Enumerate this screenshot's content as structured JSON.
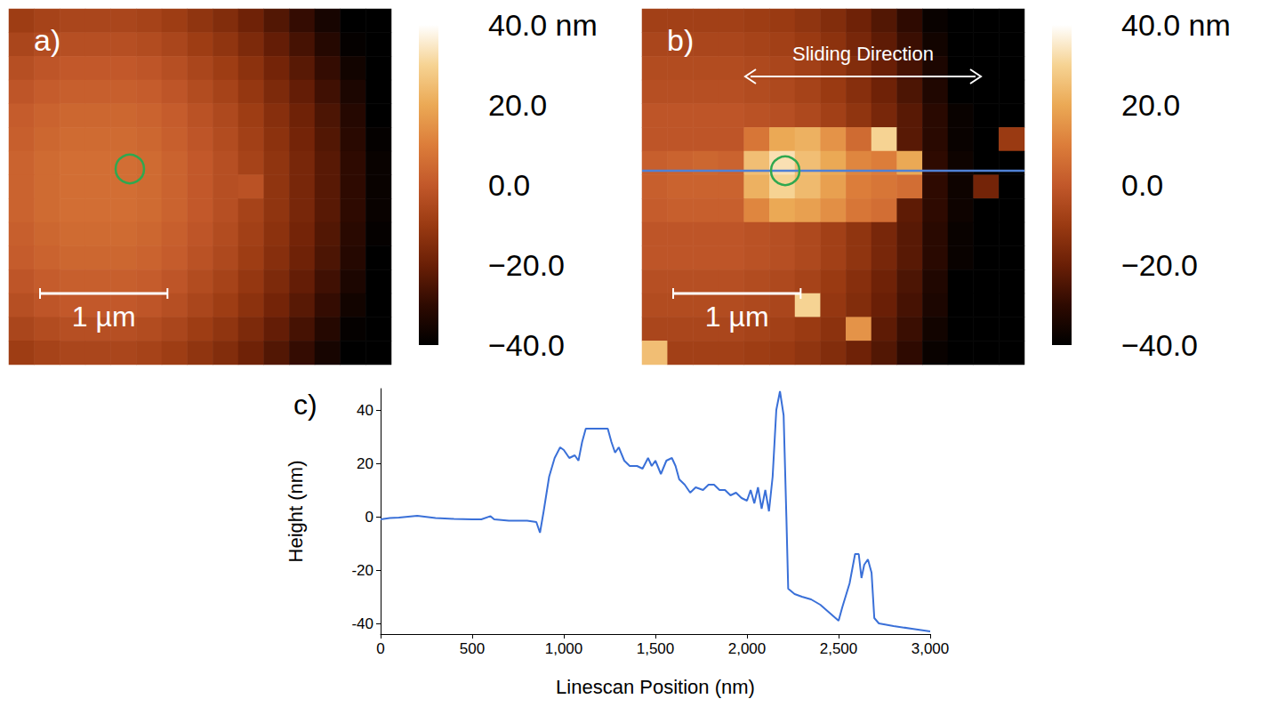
{
  "chart_data": [
    {
      "type": "heatmap",
      "title": "a)",
      "tick_labels": false,
      "x": [
        0.1,
        0.3,
        0.5,
        0.7,
        0.9,
        1.1,
        1.3,
        1.5,
        1.7,
        1.9,
        2.1,
        2.3,
        2.5,
        2.7,
        2.9
      ],
      "y": [
        0.1,
        0.3,
        0.5,
        0.7,
        0.9,
        1.1,
        1.3,
        1.5,
        1.7,
        1.9,
        2.1,
        2.3,
        2.5,
        2.7,
        2.9
      ],
      "values": [
        [
          -9,
          -7,
          -6,
          -6,
          -6,
          -7,
          -9,
          -12,
          -15,
          -19,
          -24,
          -29,
          -35,
          -40,
          -40
        ],
        [
          -6,
          -4,
          -3,
          -3,
          -3,
          -4,
          -6,
          -9,
          -12,
          -16,
          -21,
          -26,
          -32,
          -39,
          -40
        ],
        [
          -3,
          -1,
          0,
          0,
          0,
          -1,
          -3,
          -6,
          -9,
          -13,
          -18,
          -23,
          -29,
          -36,
          -40
        ],
        [
          -1,
          1,
          2,
          2,
          2,
          1,
          -1,
          -4,
          -7,
          -11,
          -16,
          -21,
          -27,
          -34,
          -40
        ],
        [
          1,
          3,
          4,
          4,
          4,
          3,
          1,
          -2,
          -5,
          -9,
          -14,
          -19,
          -25,
          -32,
          -40
        ],
        [
          2,
          4,
          5,
          5,
          5,
          4,
          2,
          -1,
          -4,
          -8,
          -13,
          -18,
          -24,
          -31,
          -39
        ],
        [
          3,
          5,
          6,
          6,
          6,
          5,
          3,
          0,
          -3,
          -7,
          -12,
          -17,
          -23,
          -30,
          -38
        ],
        [
          3,
          5,
          6,
          6,
          6,
          5,
          3,
          0,
          -3,
          -2,
          -12,
          -17,
          -23,
          -30,
          -38
        ],
        [
          3,
          5,
          6,
          6,
          6,
          5,
          3,
          0,
          -3,
          -7,
          -12,
          -17,
          -23,
          -30,
          -38
        ],
        [
          2,
          4,
          5,
          5,
          5,
          4,
          2,
          -1,
          -4,
          -8,
          -13,
          -18,
          -24,
          -31,
          -39
        ],
        [
          1,
          3,
          4,
          4,
          4,
          3,
          1,
          -2,
          -5,
          -9,
          -14,
          -19,
          -25,
          -32,
          -40
        ],
        [
          -1,
          1,
          2,
          2,
          2,
          1,
          -1,
          -4,
          -7,
          -11,
          -16,
          -21,
          -27,
          -34,
          -40
        ],
        [
          -3,
          -1,
          0,
          0,
          0,
          -1,
          -3,
          -6,
          -9,
          -13,
          -18,
          -23,
          -29,
          -36,
          -40
        ],
        [
          -6,
          -4,
          -3,
          -3,
          -3,
          -4,
          -6,
          -9,
          -12,
          -16,
          -21,
          -26,
          -32,
          -39,
          -40
        ],
        [
          -9,
          -7,
          -6,
          -6,
          -6,
          -7,
          -9,
          -12,
          -15,
          -19,
          -24,
          -29,
          -35,
          -40,
          -40
        ]
      ],
      "scale_bar": {
        "value": 1,
        "label": "1 µm"
      },
      "colorbar": {
        "range": [
          -40,
          40
        ],
        "ticks": [
          {
            "value": 40,
            "label": "40.0 nm"
          },
          {
            "value": 20,
            "label": "20.0"
          },
          {
            "value": 0,
            "label": "0.0"
          },
          {
            "value": -20,
            "label": "−20.0"
          },
          {
            "value": -40,
            "label": "−40.0"
          }
        ]
      }
    },
    {
      "type": "heatmap",
      "title": "b)",
      "tick_labels": false,
      "x": [
        0.1,
        0.3,
        0.5,
        0.7,
        0.9,
        1.1,
        1.3,
        1.5,
        1.7,
        1.9,
        2.1,
        2.3,
        2.5,
        2.7,
        2.9
      ],
      "y": [
        0.1,
        0.3,
        0.5,
        0.7,
        0.9,
        1.1,
        1.3,
        1.5,
        1.7,
        1.9,
        2.1,
        2.3,
        2.5,
        2.7,
        2.9
      ],
      "values": [
        [
          -8,
          -8,
          -8,
          -8,
          -9,
          -10,
          -12,
          -15,
          -19,
          -24,
          -30,
          -38,
          -40,
          -40,
          -40
        ],
        [
          -6,
          -6,
          -6,
          -6,
          -7,
          -8,
          -10,
          -13,
          -17,
          -22,
          -28,
          -36,
          -40,
          -40,
          -40
        ],
        [
          -4,
          -4,
          -4,
          -4,
          -5,
          -6,
          -8,
          -11,
          -15,
          -20,
          -26,
          -34,
          -40,
          -40,
          -40
        ],
        [
          -3,
          -3,
          -3,
          -3,
          -4,
          -5,
          -7,
          -10,
          -14,
          -19,
          -25,
          -33,
          -40,
          -40,
          -40
        ],
        [
          -1,
          -1,
          -1,
          -1,
          -2,
          -3,
          -5,
          -8,
          -12,
          -17,
          -23,
          -31,
          -38,
          -40,
          -40
        ],
        [
          -1,
          -1,
          -1,
          -1,
          8,
          20,
          22,
          15,
          5,
          30,
          -23,
          -31,
          -38,
          -40,
          -10
        ],
        [
          2,
          3,
          4,
          3,
          25,
          33,
          25,
          20,
          12,
          10,
          20,
          -30,
          -37,
          -40,
          -40
        ],
        [
          2,
          3,
          3,
          3,
          22,
          30,
          24,
          18,
          10,
          8,
          6,
          -30,
          -37,
          -18,
          -40
        ],
        [
          1,
          2,
          2,
          2,
          12,
          20,
          18,
          14,
          8,
          6,
          -22,
          -30,
          -37,
          -40,
          -40
        ],
        [
          -1,
          -1,
          -1,
          -1,
          -2,
          -3,
          -5,
          -8,
          -12,
          -17,
          -23,
          -31,
          -38,
          -40,
          -40
        ],
        [
          -1,
          -1,
          -1,
          -1,
          -2,
          -3,
          -5,
          -8,
          -12,
          -17,
          -23,
          -31,
          -38,
          -40,
          -40
        ],
        [
          -3,
          -3,
          -3,
          -3,
          -4,
          -5,
          -7,
          -10,
          -14,
          -19,
          -25,
          -33,
          -40,
          -40,
          -40
        ],
        [
          -4,
          -4,
          -4,
          -4,
          -5,
          -6,
          30,
          -11,
          -15,
          -20,
          -26,
          -34,
          -40,
          -40,
          -40
        ],
        [
          -6,
          -6,
          -6,
          -6,
          -7,
          -8,
          -10,
          -13,
          15,
          -22,
          -28,
          -36,
          -40,
          -40,
          -40
        ],
        [
          25,
          -8,
          -8,
          -8,
          -9,
          -10,
          -12,
          -15,
          -19,
          -24,
          -30,
          -38,
          -40,
          -40,
          -40
        ]
      ],
      "scale_bar": {
        "value": 1,
        "label": "1 µm"
      },
      "annotations": [
        {
          "text": "Sliding Direction"
        }
      ],
      "colorbar": {
        "range": [
          -40,
          40
        ],
        "ticks": [
          {
            "value": 40,
            "label": "40.0 nm"
          },
          {
            "value": 20,
            "label": "20.0"
          },
          {
            "value": 0,
            "label": "0.0"
          },
          {
            "value": -20,
            "label": "−20.0"
          },
          {
            "value": -40,
            "label": "−40.0"
          }
        ]
      }
    },
    {
      "type": "line",
      "title": "c)",
      "xlabel": "Linescan Position (nm)",
      "ylabel": "Height (nm)",
      "color": "#3a70d8",
      "grid": false,
      "xlim": [
        0,
        3000
      ],
      "xticks": [
        0,
        500,
        1000,
        1500,
        2000,
        2500,
        3000
      ],
      "ylim": [
        -44,
        48
      ],
      "yticks": [
        -40,
        -20,
        0,
        20,
        40
      ],
      "x": [
        0,
        50,
        100,
        200,
        300,
        400,
        500,
        550,
        600,
        620,
        700,
        800,
        850,
        870,
        890,
        920,
        950,
        980,
        1000,
        1030,
        1060,
        1080,
        1100,
        1120,
        1150,
        1200,
        1240,
        1260,
        1280,
        1300,
        1330,
        1360,
        1400,
        1430,
        1460,
        1480,
        1500,
        1530,
        1560,
        1590,
        1610,
        1630,
        1660,
        1690,
        1720,
        1760,
        1790,
        1820,
        1850,
        1880,
        1910,
        1940,
        1970,
        2000,
        2020,
        2040,
        2060,
        2080,
        2100,
        2110,
        2120,
        2140,
        2160,
        2180,
        2200,
        2215,
        2225,
        2260,
        2300,
        2350,
        2400,
        2450,
        2500,
        2520,
        2560,
        2590,
        2610,
        2625,
        2640,
        2660,
        2680,
        2695,
        2720,
        2800,
        2900,
        3000
      ],
      "values": [
        -1,
        -0.5,
        -0.3,
        0.3,
        -0.5,
        -0.8,
        -1,
        -1,
        0.2,
        -1,
        -1.5,
        -1.5,
        -2,
        -6,
        2,
        15,
        22,
        26,
        25,
        22,
        23,
        21,
        28,
        33,
        33,
        33,
        33,
        28,
        24,
        26,
        21,
        19,
        19,
        18,
        22,
        19,
        21,
        16,
        21,
        22,
        19,
        14,
        12,
        9,
        11,
        10,
        12,
        12,
        10,
        10,
        8,
        9,
        7,
        6,
        10,
        5,
        11,
        3,
        10,
        6,
        2,
        15,
        40,
        47,
        38,
        0,
        -27,
        -29,
        -30,
        -31,
        -33,
        -36,
        -39,
        -34,
        -25,
        -14,
        -14,
        -23,
        -18,
        -16,
        -21,
        -38,
        -40,
        -41,
        -42,
        -43
      ]
    }
  ]
}
